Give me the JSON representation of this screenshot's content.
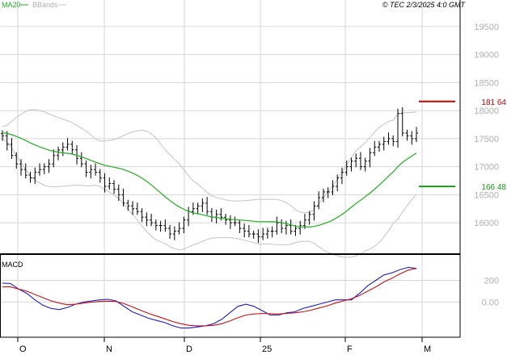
{
  "colors": {
    "background": "#ffffff",
    "grid": "#d6d6d6",
    "frame": "#000000",
    "price_bar": "#000000",
    "ma20": "#1fae1f",
    "bbands": "#c4c4c4",
    "macd_line": "#1c1cd0",
    "signal_line": "#cc1111",
    "resistance": "#cc0000",
    "support": "#1a9a1a",
    "axis_text": "#b0b0b0",
    "legend_bbands": "#b0b0b0"
  },
  "legend": {
    "ma20_label": "MA20",
    "bbands_label": "BBands"
  },
  "source_text": "© TEC 2/3/2025 4:0 GMT",
  "chart_data": [
    {
      "type": "ohlc",
      "panel": "price",
      "x_tick_labels": [
        "O",
        "N",
        "D",
        "25",
        "F",
        "M"
      ],
      "y_tick_labels": [
        "19500",
        "19000",
        "18500",
        "18000",
        "17500",
        "17000",
        "16500",
        "16000"
      ],
      "ylim": [
        15700,
        19700
      ],
      "grid": true,
      "series": [
        {
          "name": "MA20"
        },
        {
          "name": "BBands"
        }
      ],
      "closes": [
        17550,
        17400,
        17200,
        17050,
        16950,
        16850,
        16800,
        16900,
        16950,
        17000,
        17050,
        17200,
        17300,
        17350,
        17400,
        17300,
        17150,
        17050,
        16900,
        16950,
        16900,
        16800,
        16650,
        16700,
        16600,
        16500,
        16350,
        16300,
        16250,
        16200,
        16100,
        16050,
        16000,
        15950,
        15950,
        15900,
        15800,
        15850,
        15900,
        16050,
        16200,
        16250,
        16300,
        16350,
        16200,
        16100,
        16150,
        16100,
        16050,
        16000,
        16000,
        15900,
        15850,
        15800,
        15800,
        15750,
        15800,
        15850,
        15850,
        16000,
        15900,
        15950,
        15850,
        15900,
        15950,
        16050,
        16150,
        16300,
        16450,
        16550,
        16550,
        16650,
        16800,
        16900,
        17000,
        17100,
        17150,
        17000,
        17100,
        17250,
        17350,
        17400,
        17450,
        17500,
        17450,
        17950,
        17600,
        17550,
        17500,
        17600
      ],
      "annotations": [
        {
          "label": "181 64",
          "value": 18164,
          "kind": "resistance"
        },
        {
          "label": "166 48",
          "value": 16648,
          "kind": "support"
        }
      ]
    },
    {
      "type": "line",
      "panel": "indicator",
      "title": "MACD",
      "y_tick_labels": [
        "200",
        "0.00"
      ],
      "ylim": [
        -280,
        360
      ],
      "series": [
        {
          "values": [
            175,
            170,
            120,
            80,
            20,
            -30,
            -60,
            -70,
            -50,
            -20,
            0,
            10,
            20,
            25,
            10,
            -40,
            -90,
            -120,
            -150,
            -170,
            -190,
            -220,
            -240,
            -240,
            -230,
            -220,
            -200,
            -160,
            -100,
            -40,
            -20,
            -40,
            -80,
            -120,
            -120,
            -100,
            -90,
            -60,
            -40,
            -20,
            0,
            20,
            20,
            20,
            80,
            150,
            200,
            250,
            270,
            300,
            320,
            310
          ]
        },
        {
          "values": [
            140,
            140,
            120,
            100,
            70,
            40,
            10,
            -10,
            -25,
            -20,
            -10,
            0,
            5,
            8,
            5,
            -15,
            -45,
            -75,
            -105,
            -130,
            -155,
            -180,
            -200,
            -215,
            -220,
            -220,
            -215,
            -200,
            -175,
            -145,
            -120,
            -110,
            -105,
            -108,
            -110,
            -105,
            -100,
            -90,
            -75,
            -55,
            -35,
            -10,
            10,
            30,
            60,
            100,
            140,
            185,
            220,
            260,
            295,
            310
          ]
        }
      ]
    }
  ]
}
